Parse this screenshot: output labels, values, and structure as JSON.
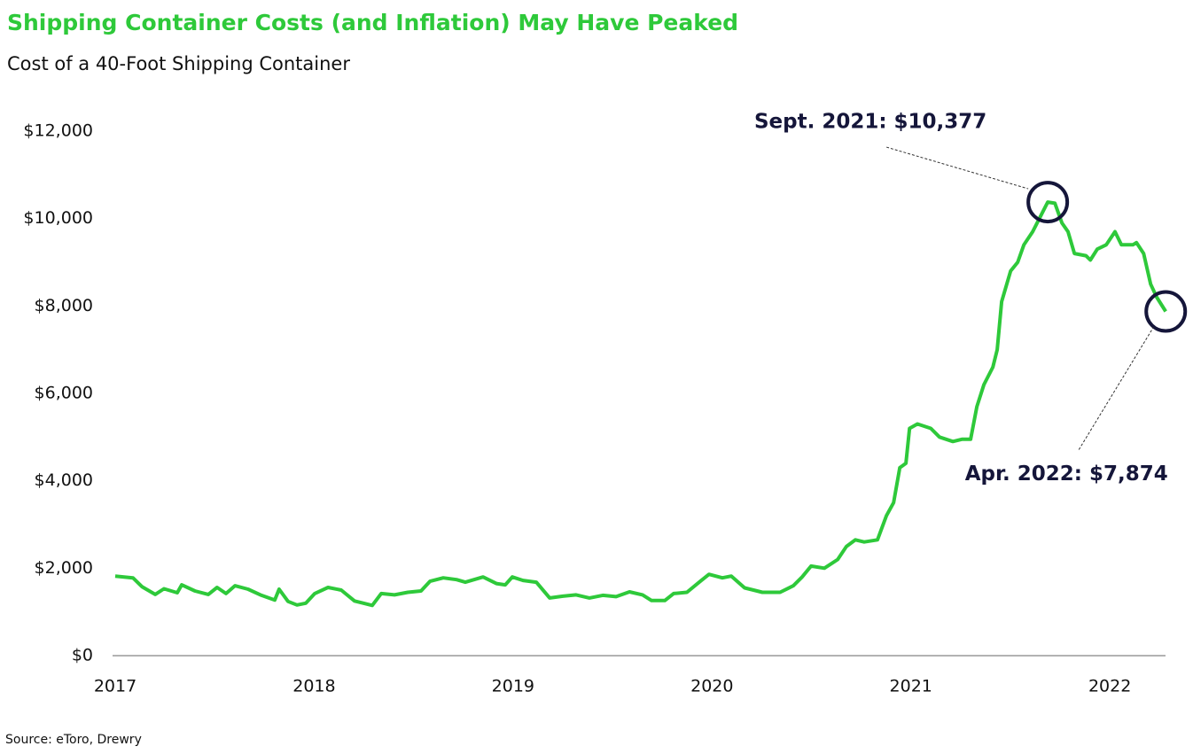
{
  "chart_data": {
    "type": "line",
    "title": "Shipping Container Costs (and Inflation) May Have Peaked",
    "subtitle": "Cost of a 40-Foot Shipping Container",
    "source": "Source: eToro, Drewry",
    "x": [
      2017.0,
      2017.089,
      2017.134,
      2017.201,
      2017.245,
      2017.312,
      2017.334,
      2017.401,
      2017.468,
      2017.512,
      2017.557,
      2017.602,
      2017.668,
      2017.735,
      2017.802,
      2017.824,
      2017.869,
      2017.914,
      2017.958,
      2018.003,
      2018.07,
      2018.136,
      2018.203,
      2018.248,
      2018.292,
      2018.337,
      2018.404,
      2018.471,
      2018.537,
      2018.582,
      2018.649,
      2018.716,
      2018.76,
      2018.849,
      2018.916,
      2018.961,
      2018.996,
      2019.05,
      2019.117,
      2019.184,
      2019.25,
      2019.317,
      2019.384,
      2019.451,
      2019.518,
      2019.585,
      2019.651,
      2019.696,
      2019.763,
      2019.807,
      2019.874,
      2019.941,
      2019.985,
      2020.052,
      2020.097,
      2020.164,
      2020.209,
      2020.253,
      2020.342,
      2020.409,
      2020.453,
      2020.498,
      2020.565,
      2020.632,
      2020.676,
      2020.721,
      2020.765,
      2020.832,
      2020.877,
      2020.913,
      2020.944,
      2020.975,
      2020.993,
      2021.033,
      2021.1,
      2021.144,
      2021.211,
      2021.256,
      2021.3,
      2021.332,
      2021.367,
      2021.412,
      2021.434,
      2021.456,
      2021.501,
      2021.537,
      2021.568,
      2021.612,
      2021.657,
      2021.688,
      2021.724,
      2021.759,
      2021.79,
      2021.822,
      2021.88,
      2021.902,
      2021.937,
      2021.982,
      2022.026,
      2022.058,
      2022.116,
      2022.134,
      2022.17,
      2022.205,
      2022.236,
      2022.281
    ],
    "series": [
      {
        "name": "Cost of a 40-Foot Shipping Container",
        "color": "#2ec93a",
        "values": [
          1820,
          1780,
          1580,
          1400,
          1530,
          1440,
          1620,
          1480,
          1400,
          1560,
          1420,
          1600,
          1520,
          1380,
          1270,
          1520,
          1240,
          1160,
          1200,
          1420,
          1560,
          1500,
          1250,
          1200,
          1150,
          1420,
          1390,
          1450,
          1480,
          1700,
          1780,
          1740,
          1680,
          1800,
          1650,
          1620,
          1800,
          1720,
          1680,
          1320,
          1360,
          1390,
          1320,
          1380,
          1350,
          1460,
          1390,
          1260,
          1260,
          1420,
          1450,
          1700,
          1860,
          1780,
          1820,
          1550,
          1500,
          1450,
          1450,
          1600,
          1800,
          2050,
          2000,
          2200,
          2500,
          2650,
          2600,
          2650,
          3200,
          3500,
          4300,
          4400,
          5200,
          5300,
          5200,
          5000,
          4900,
          4950,
          4950,
          5700,
          6200,
          6600,
          7000,
          8100,
          8800,
          9000,
          9400,
          9700,
          10100,
          10377,
          10350,
          9900,
          9700,
          9200,
          9150,
          9050,
          9300,
          9400,
          9700,
          9400,
          9400,
          9450,
          9200,
          8500,
          8200,
          7874
        ]
      }
    ],
    "xlim": [
      2017,
      2022.28
    ],
    "xticks": [
      2017,
      2018,
      2019,
      2020,
      2021,
      2022
    ],
    "ylim": [
      0,
      12000
    ],
    "yticks": [
      {
        "value": 0,
        "label": "$0"
      },
      {
        "value": 2000,
        "label": "$2,000"
      },
      {
        "value": 4000,
        "label": "$4,000"
      },
      {
        "value": 6000,
        "label": "$6,000"
      },
      {
        "value": 8000,
        "label": "$8,000"
      },
      {
        "value": 10000,
        "label": "$10,000"
      },
      {
        "value": 12000,
        "label": "$12,000"
      }
    ],
    "grid": false,
    "annotations": [
      {
        "text": "Sept. 2021: $10,377",
        "x": 2021.688,
        "y": 10377
      },
      {
        "text": "Apr. 2022: $7,874",
        "x": 2022.281,
        "y": 7874
      }
    ]
  }
}
